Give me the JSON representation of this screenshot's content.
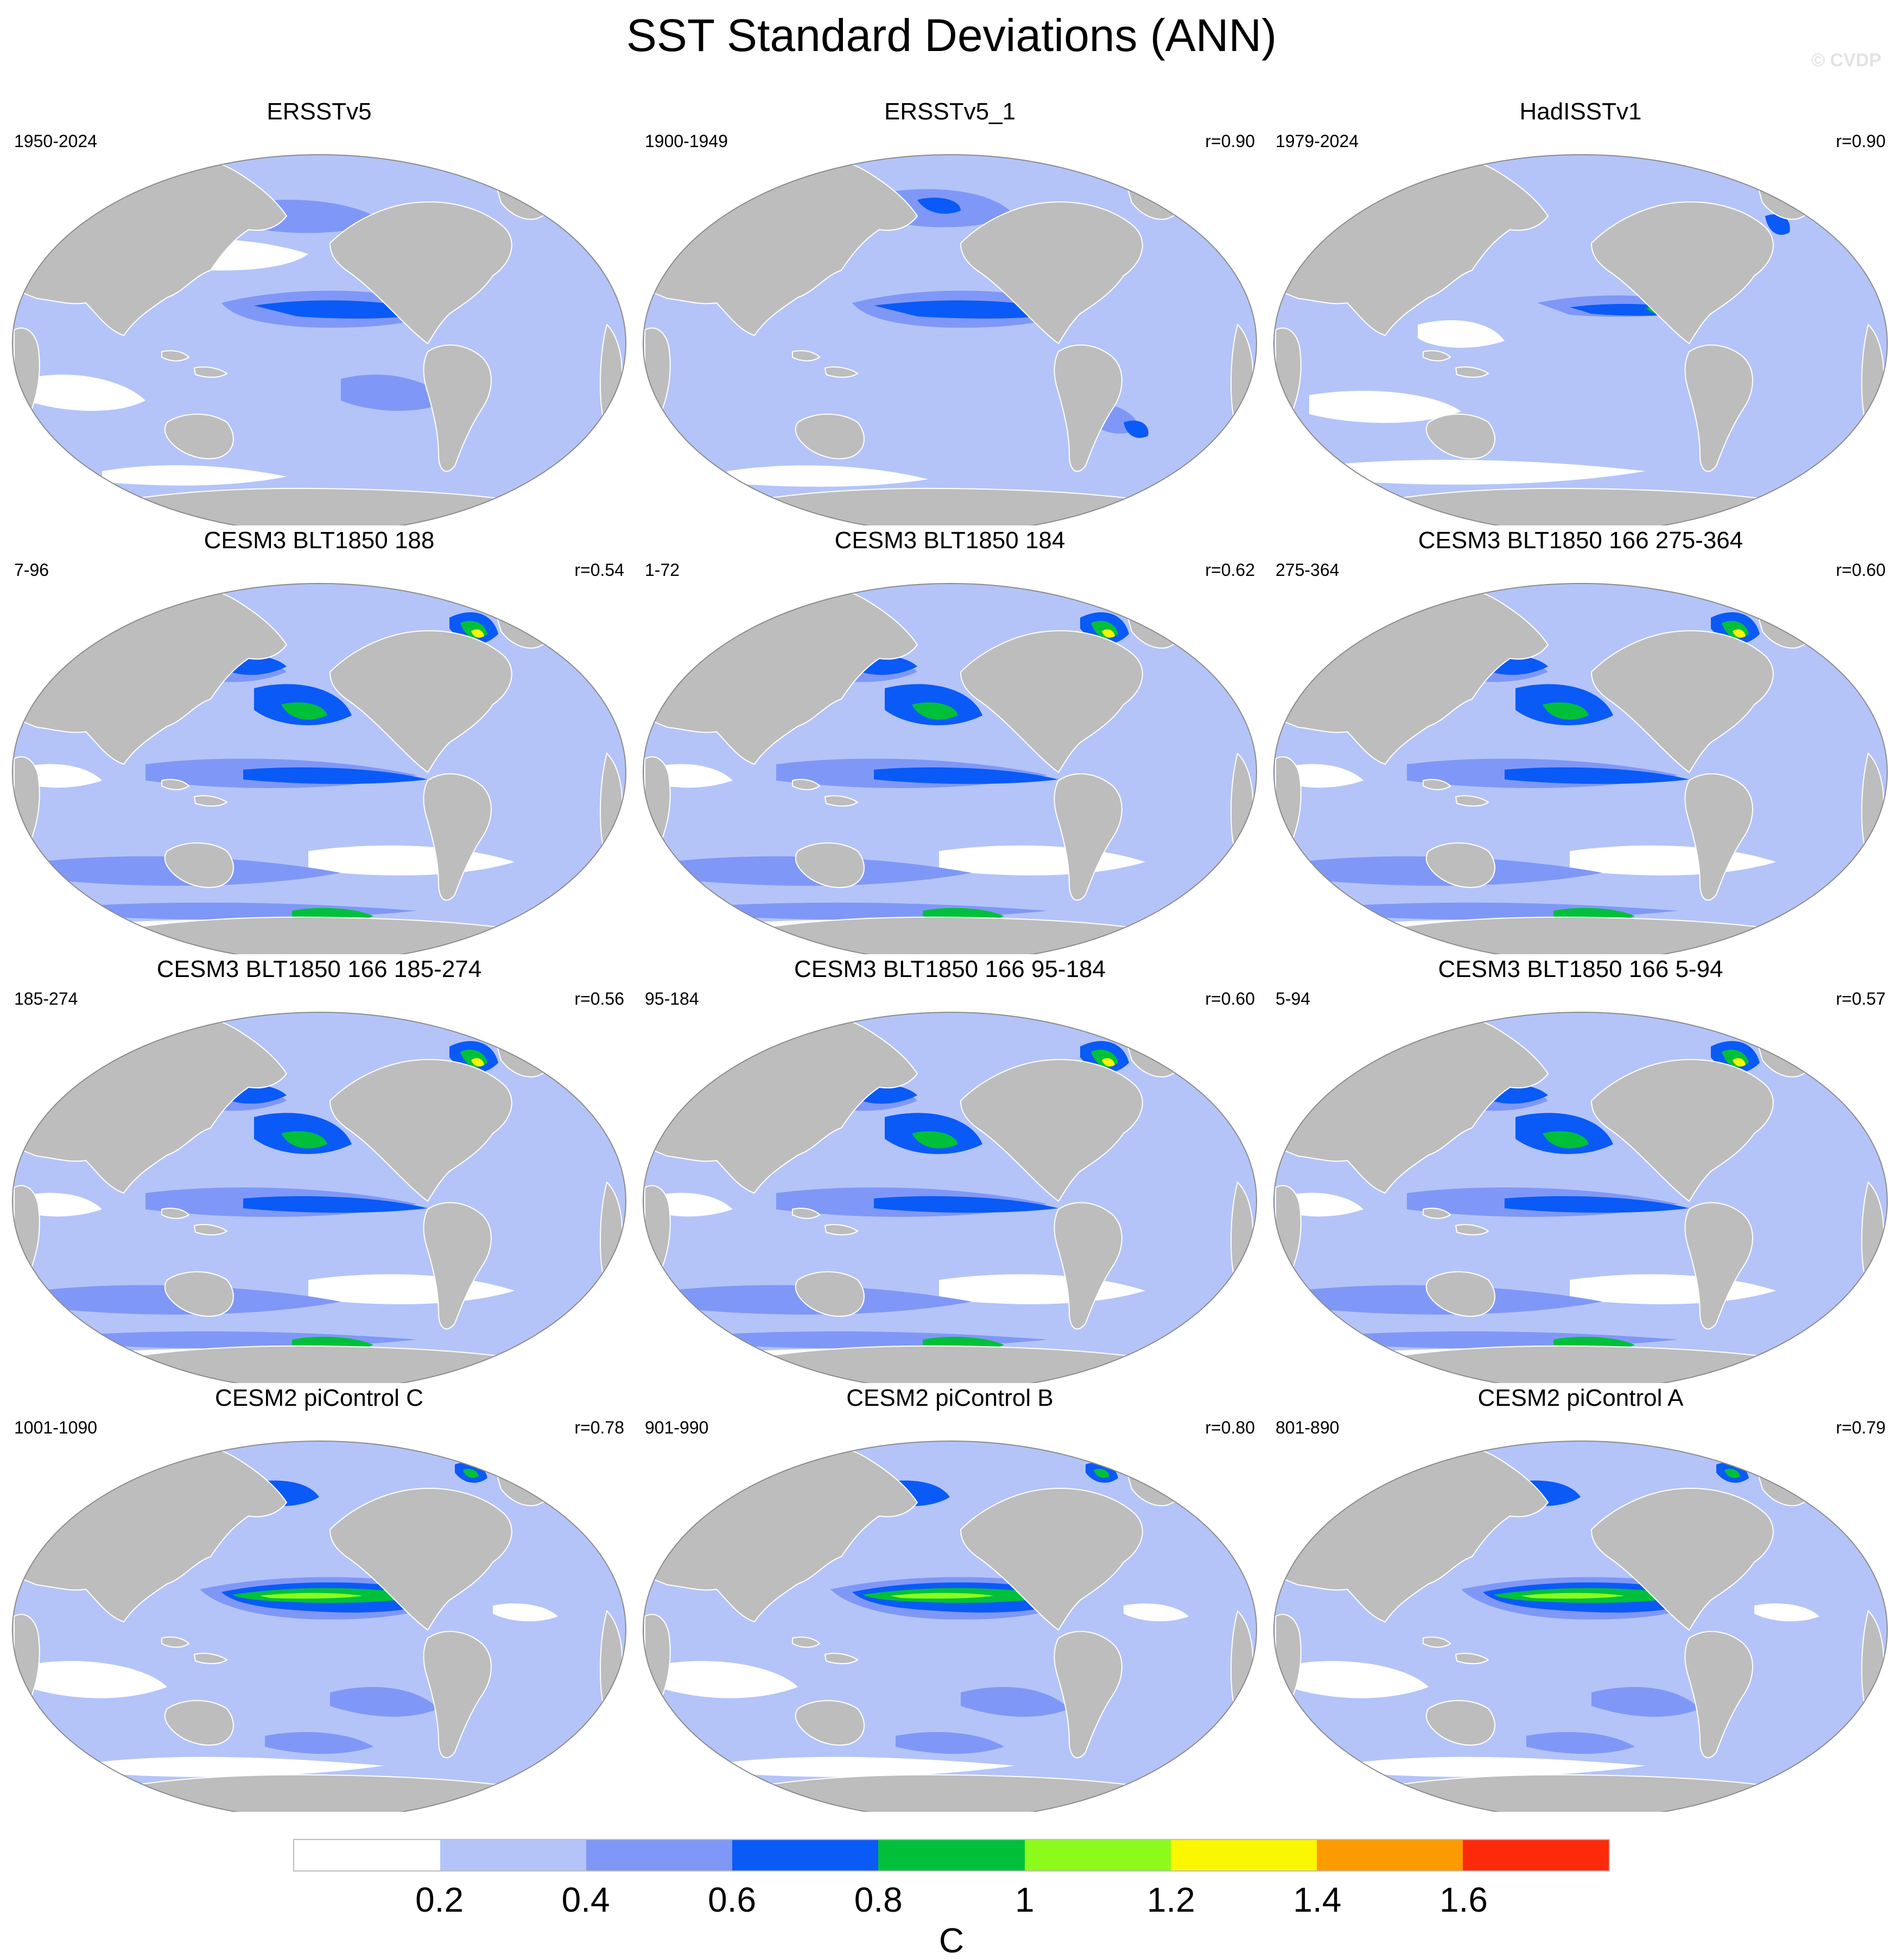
{
  "title": "SST Standard Deviations (ANN)",
  "watermark": "© CVDP",
  "panels": [
    {
      "title": "ERSSTv5",
      "period": "1950-2024",
      "corr": "",
      "pattern": "obs_ersst"
    },
    {
      "title": "ERSSTv5_1",
      "period": "1900-1949",
      "corr": "r=0.90",
      "pattern": "obs_ersst1"
    },
    {
      "title": "HadISSTv1",
      "period": "1979-2024",
      "corr": "r=0.90",
      "pattern": "obs_hadisst"
    },
    {
      "title": "CESM3 BLT1850 188",
      "period": "7-96",
      "corr": "r=0.54",
      "pattern": "cesm3"
    },
    {
      "title": "CESM3 BLT1850 184",
      "period": "1-72",
      "corr": "r=0.62",
      "pattern": "cesm3"
    },
    {
      "title": "CESM3 BLT1850 166 275-364",
      "period": "275-364",
      "corr": "r=0.60",
      "pattern": "cesm3"
    },
    {
      "title": "CESM3 BLT1850 166 185-274",
      "period": "185-274",
      "corr": "r=0.56",
      "pattern": "cesm3"
    },
    {
      "title": "CESM3 BLT1850 166 95-184",
      "period": "95-184",
      "corr": "r=0.60",
      "pattern": "cesm3"
    },
    {
      "title": "CESM3 BLT1850 166 5-94",
      "period": "5-94",
      "corr": "r=0.57",
      "pattern": "cesm3"
    },
    {
      "title": "CESM2 piControl C",
      "period": "1001-1090",
      "corr": "r=0.78",
      "pattern": "cesm2"
    },
    {
      "title": "CESM2 piControl B",
      "period": "901-990",
      "corr": "r=0.80",
      "pattern": "cesm2"
    },
    {
      "title": "CESM2 piControl A",
      "period": "801-890",
      "corr": "r=0.79",
      "pattern": "cesm2"
    }
  ],
  "colors": {
    "land": "#bdbdbd",
    "coast": "#ffffff",
    "outline": "#8c8c8c",
    "levels": [
      "#ffffff",
      "#b4c4f9",
      "#7f98f7",
      "#0a5af7",
      "#00c03a",
      "#8cfb1c",
      "#fbf700",
      "#fc9b00",
      "#fc2a0b"
    ]
  },
  "colorbar": {
    "labels": [
      "0.2",
      "0.4",
      "0.6",
      "0.8",
      "1",
      "1.2",
      "1.4",
      "1.6"
    ],
    "units": "C"
  }
}
